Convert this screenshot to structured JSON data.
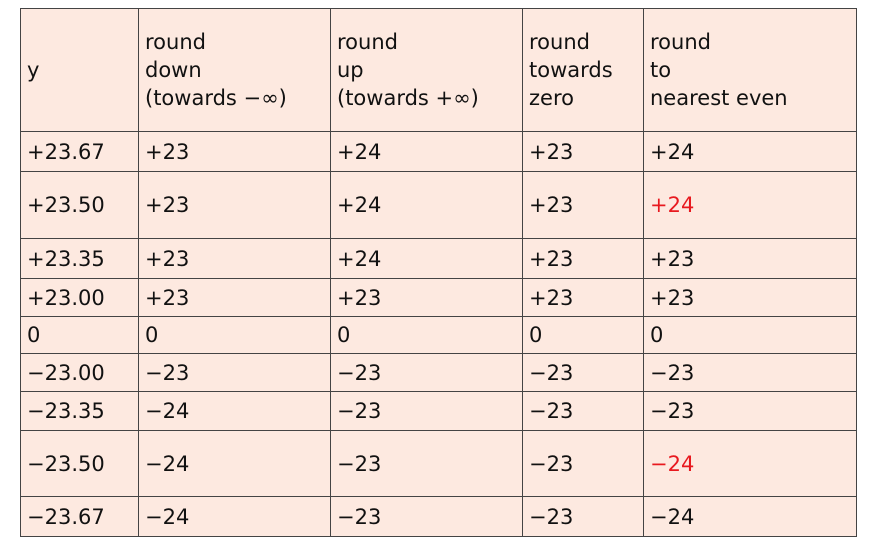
{
  "table": {
    "headers": [
      {
        "lines": [
          "y"
        ]
      },
      {
        "lines": [
          "round",
          "down",
          "(towards −∞)"
        ]
      },
      {
        "lines": [
          "round",
          "up",
          "(towards +∞)"
        ]
      },
      {
        "lines": [
          "round",
          "towards",
          "zero"
        ]
      },
      {
        "lines": [
          "round",
          "to",
          "nearest even"
        ]
      }
    ],
    "rows": [
      {
        "cells": [
          "+23.67",
          "+23",
          "+24",
          "+23",
          "+24"
        ],
        "highlight_col": null
      },
      {
        "cells": [
          "+23.50",
          "+23",
          "+24",
          "+23",
          "+24"
        ],
        "highlight_col": 4
      },
      {
        "cells": [
          "+23.35",
          "+23",
          "+24",
          "+23",
          "+23"
        ],
        "highlight_col": null
      },
      {
        "cells": [
          "+23.00",
          "+23",
          "+23",
          "+23",
          "+23"
        ],
        "highlight_col": null
      },
      {
        "cells": [
          "0",
          "0",
          "0",
          "0",
          "0"
        ],
        "highlight_col": null
      },
      {
        "cells": [
          "−23.00",
          "−23",
          "−23",
          "−23",
          "−23"
        ],
        "highlight_col": null
      },
      {
        "cells": [
          "−23.35",
          "−24",
          "−23",
          "−23",
          "−23"
        ],
        "highlight_col": null
      },
      {
        "cells": [
          "−23.50",
          "−24",
          "−23",
          "−23",
          "−24"
        ],
        "highlight_col": 4
      },
      {
        "cells": [
          "−23.67",
          "−24",
          "−23",
          "−23",
          "−24"
        ],
        "highlight_col": null
      }
    ],
    "colors": {
      "background": "#fde9e0",
      "border": "#444444",
      "text": "#111111",
      "highlight": "#e8191f"
    }
  }
}
